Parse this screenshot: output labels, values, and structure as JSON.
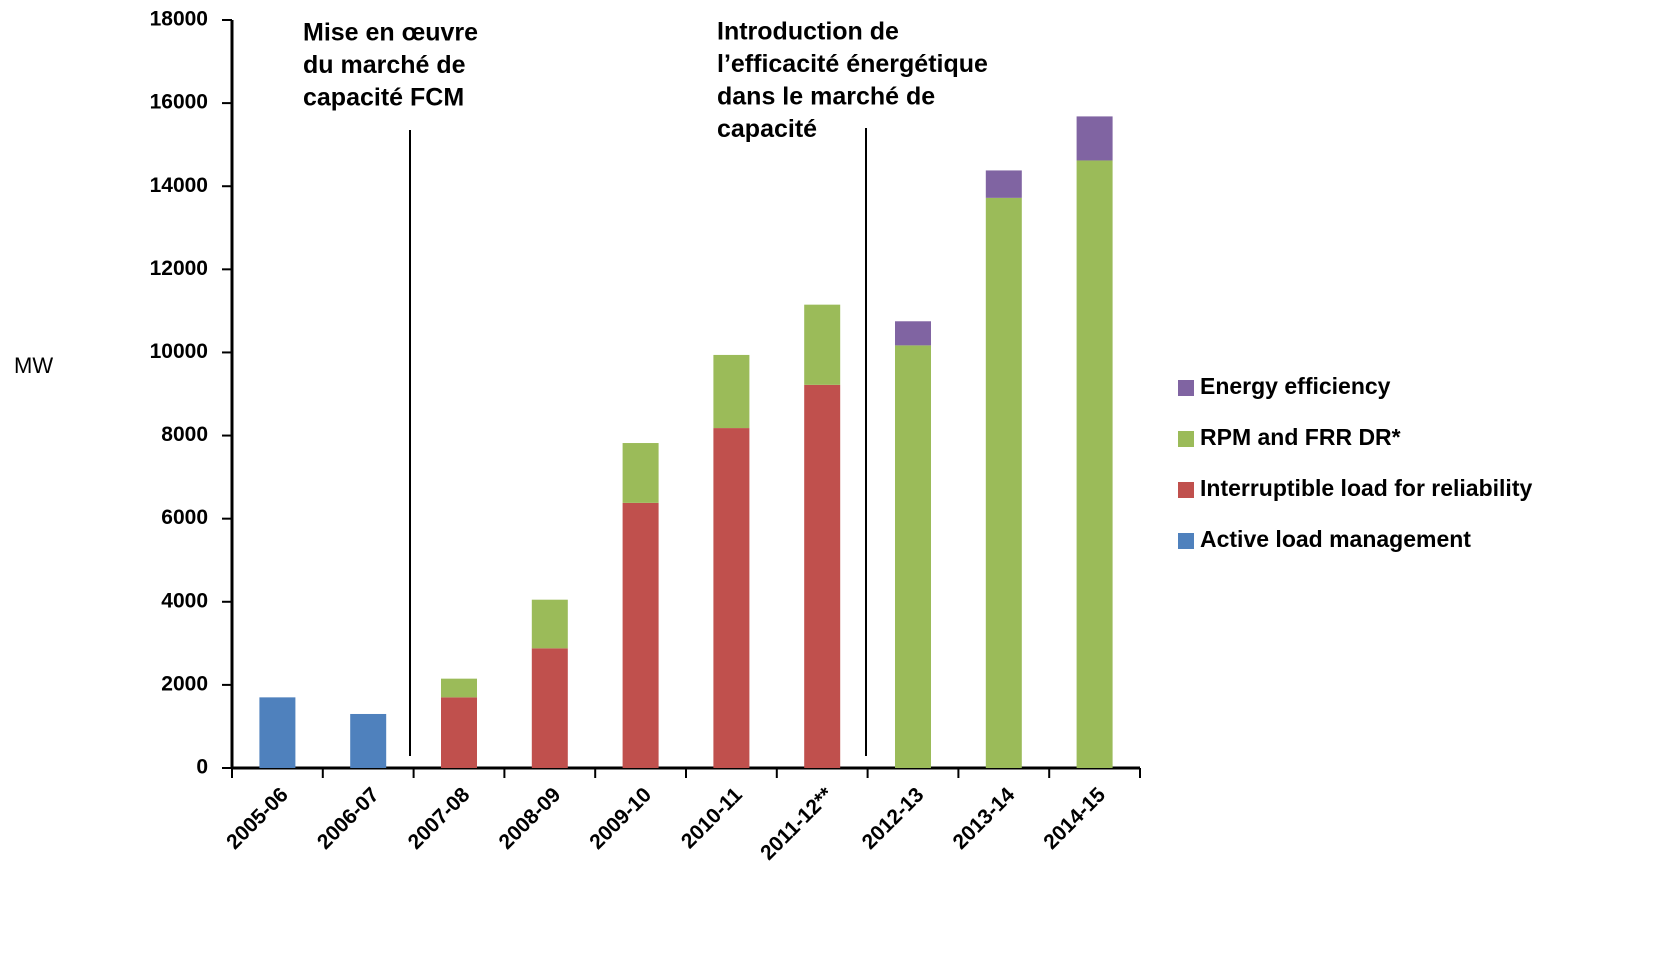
{
  "chart_data": {
    "type": "stacked-bar",
    "y_label": "MW",
    "categories": [
      "2005-06",
      "2006-07",
      "2007-08",
      "2008-09",
      "2009-10",
      "2010-11",
      "2011-12**",
      "2012-13",
      "2013-14",
      "2014-15"
    ],
    "series": [
      {
        "name": "Active load management",
        "color": "#4f81bd",
        "values": [
          1700,
          1300,
          null,
          null,
          null,
          null,
          null,
          null,
          null,
          null
        ]
      },
      {
        "name": "Interruptible load for reliability",
        "color": "#c0504d",
        "values": [
          null,
          null,
          1700,
          2880,
          6380,
          8180,
          9220,
          null,
          null,
          null
        ]
      },
      {
        "name": "RPM and FRR DR*",
        "color": "#9bbb59",
        "values": [
          null,
          null,
          450,
          1170,
          1440,
          1760,
          1930,
          10170,
          13720,
          14620
        ]
      },
      {
        "name": "Energy efficiency",
        "color": "#8064a2",
        "values": [
          null,
          null,
          null,
          null,
          null,
          null,
          null,
          580,
          660,
          1060
        ]
      }
    ],
    "ylim": [
      0,
      18000
    ],
    "yticks": [
      0,
      2000,
      4000,
      6000,
      8000,
      10000,
      12000,
      14000,
      16000,
      18000
    ],
    "annotations": [
      {
        "lines": [
          "Mise en œuvre",
          "du marché de",
          "capacité FCM"
        ]
      },
      {
        "lines": [
          "Introduction de",
          "l’efficacité énergétique",
          "dans le marché de",
          "capacité"
        ]
      }
    ],
    "legend": "right"
  }
}
